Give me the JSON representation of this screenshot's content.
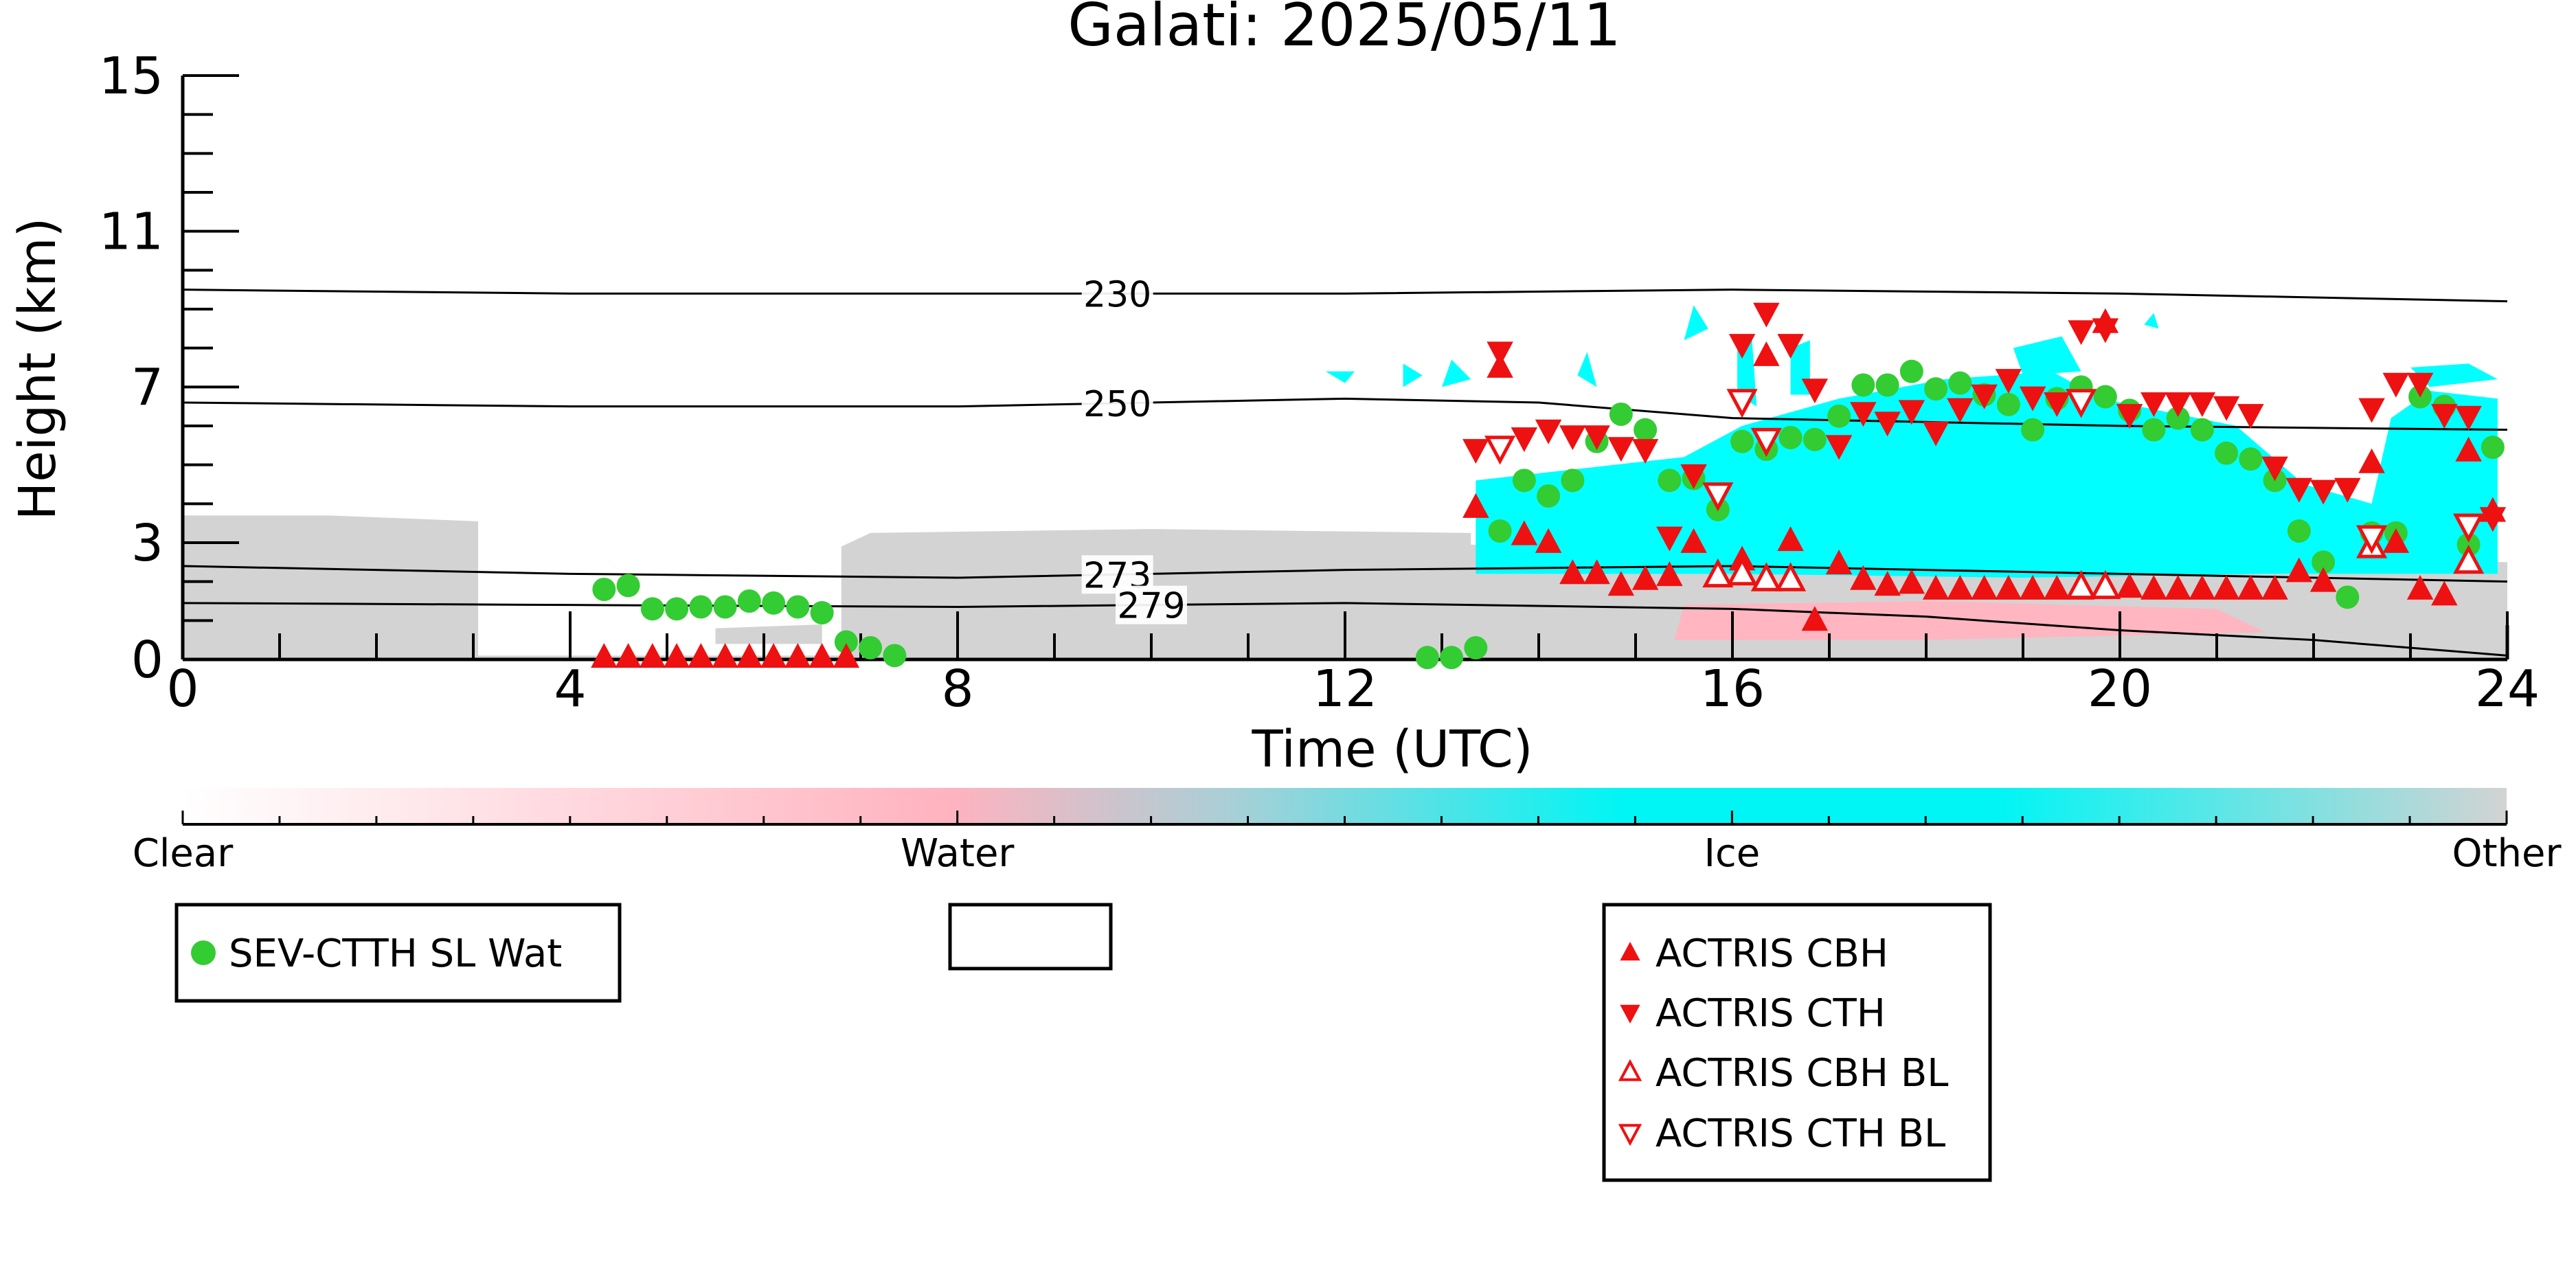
{
  "chart_data": {
    "type": "scatter",
    "title": "Galati: 2025/05/11",
    "xlabel": "Time (UTC)",
    "ylabel": "Height (km)",
    "xlim": [
      0,
      24
    ],
    "ylim": [
      0,
      15
    ],
    "x_ticks": [
      0,
      4,
      8,
      12,
      16,
      20,
      24
    ],
    "y_ticks": [
      0,
      3,
      7,
      11,
      15
    ],
    "grid": false,
    "colorbar": {
      "labels": [
        "Clear",
        "Water",
        "Ice",
        "Other"
      ],
      "colors": [
        "#ffffff",
        "#ffb6c1",
        "#00ffff",
        "#d3d3d3"
      ]
    },
    "legend": [
      {
        "label": "SEV-CTTH SL Wat",
        "marker": "circle",
        "color": "#33cc33"
      },
      {
        "label": "ACTRIS CBH",
        "marker": "triangle-up",
        "color": "#ee1111",
        "filled": true
      },
      {
        "label": "ACTRIS CTH",
        "marker": "triangle-down",
        "color": "#ee1111",
        "filled": true
      },
      {
        "label": "ACTRIS CBH BL",
        "marker": "triangle-up",
        "color": "#ee1111",
        "filled": false
      },
      {
        "label": "ACTRIS CTH BL",
        "marker": "triangle-down",
        "color": "#ee1111",
        "filled": false
      }
    ],
    "contours": [
      {
        "label": "230",
        "x": [
          0,
          4,
          8,
          12,
          16,
          20,
          24
        ],
        "y": [
          9.5,
          9.4,
          9.4,
          9.4,
          9.5,
          9.4,
          9.2
        ]
      },
      {
        "label": "250",
        "x": [
          0,
          4,
          8,
          12,
          14,
          16,
          20,
          24
        ],
        "y": [
          6.6,
          6.5,
          6.5,
          6.7,
          6.6,
          6.2,
          6.0,
          5.9
        ]
      },
      {
        "label": "273",
        "x": [
          0,
          4,
          8,
          12,
          16,
          20,
          24
        ],
        "y": [
          2.4,
          2.2,
          2.1,
          2.3,
          2.4,
          2.2,
          2.0
        ]
      },
      {
        "label": "279",
        "x": [
          0,
          4,
          8,
          12,
          16,
          18,
          20,
          22,
          24
        ],
        "y": [
          1.45,
          1.4,
          1.35,
          1.45,
          1.3,
          1.1,
          0.75,
          0.5,
          0.1
        ]
      }
    ],
    "series": [
      {
        "name": "SEV-CTTH SL Wat",
        "x": [
          4.35,
          4.6,
          4.85,
          5.1,
          5.35,
          5.6,
          5.85,
          6.1,
          6.35,
          6.6,
          6.85,
          7.1,
          7.35,
          12.85,
          13.1,
          13.35,
          13.6,
          13.85,
          14.1,
          14.35,
          14.6,
          14.85,
          15.1,
          15.35,
          15.6,
          15.85,
          16.1,
          16.35,
          16.6,
          16.85,
          17.1,
          17.35,
          17.6,
          17.85,
          18.1,
          18.35,
          18.6,
          18.85,
          19.1,
          19.35,
          19.6,
          19.85,
          20.1,
          20.35,
          20.6,
          20.85,
          21.1,
          21.35,
          21.6,
          21.85,
          22.1,
          22.35,
          22.6,
          22.85,
          23.1,
          23.35,
          23.6,
          23.85
        ],
        "y": [
          1.8,
          1.9,
          1.3,
          1.3,
          1.35,
          1.35,
          1.5,
          1.45,
          1.35,
          1.2,
          0.45,
          0.3,
          0.1,
          0.05,
          0.05,
          0.3,
          3.3,
          4.6,
          4.2,
          4.6,
          5.6,
          6.3,
          5.9,
          4.6,
          4.65,
          3.85,
          5.6,
          5.4,
          5.7,
          5.65,
          6.25,
          7.05,
          7.05,
          7.4,
          6.95,
          7.1,
          6.8,
          6.55,
          5.9,
          6.7,
          7.0,
          6.75,
          6.4,
          5.9,
          6.2,
          5.9,
          5.3,
          5.15,
          4.6,
          3.3,
          2.5,
          1.6,
          3.25,
          3.25,
          6.75,
          6.5,
          2.95,
          5.45
        ]
      },
      {
        "name": "ACTRIS CBH",
        "x": [
          4.35,
          4.6,
          4.85,
          5.1,
          5.35,
          5.6,
          5.85,
          6.1,
          6.35,
          6.6,
          6.85,
          13.35,
          13.6,
          13.85,
          14.1,
          14.35,
          14.6,
          14.85,
          15.1,
          15.35,
          15.6,
          16.1,
          16.35,
          16.6,
          16.85,
          17.1,
          17.35,
          17.6,
          17.85,
          18.1,
          18.35,
          18.6,
          18.85,
          19.1,
          19.35,
          19.6,
          19.85,
          20.1,
          20.35,
          20.6,
          20.85,
          21.1,
          21.35,
          21.6,
          21.85,
          22.1,
          22.6,
          22.85,
          23.1,
          23.35,
          23.6,
          23.85
        ],
        "y": [
          0.05,
          0.05,
          0.05,
          0.05,
          0.05,
          0.05,
          0.05,
          0.05,
          0.05,
          0.05,
          0.05,
          3.9,
          7.5,
          3.2,
          3.0,
          2.2,
          2.2,
          1.9,
          2.05,
          2.15,
          3.0,
          2.55,
          7.8,
          3.05,
          1.0,
          2.45,
          2.05,
          1.9,
          1.95,
          1.8,
          1.8,
          1.8,
          1.8,
          1.8,
          1.8,
          1.8,
          8.65,
          1.85,
          1.8,
          1.8,
          1.8,
          1.8,
          1.8,
          1.8,
          2.25,
          2.0,
          5.05,
          3.0,
          1.8,
          1.65,
          5.35,
          3.8
        ]
      },
      {
        "name": "ACTRIS CTH",
        "x": [
          13.35,
          13.6,
          13.85,
          14.1,
          14.35,
          14.6,
          14.85,
          15.1,
          15.35,
          15.6,
          16.1,
          16.35,
          16.6,
          16.85,
          17.1,
          17.35,
          17.6,
          17.85,
          18.1,
          18.35,
          18.6,
          18.85,
          19.1,
          19.35,
          19.6,
          19.85,
          20.1,
          20.35,
          20.6,
          20.85,
          21.1,
          21.35,
          21.6,
          21.85,
          22.1,
          22.35,
          22.6,
          22.85,
          23.1,
          23.35,
          23.6,
          23.85
        ],
        "y": [
          5.4,
          7.9,
          5.7,
          5.9,
          5.75,
          5.75,
          5.45,
          5.4,
          3.15,
          4.75,
          8.1,
          8.9,
          8.1,
          6.95,
          5.5,
          6.35,
          6.1,
          6.4,
          5.85,
          6.45,
          6.8,
          7.2,
          6.75,
          6.6,
          8.45,
          8.5,
          6.3,
          6.6,
          6.6,
          6.6,
          6.5,
          6.3,
          4.95,
          4.4,
          4.35,
          4.4,
          6.45,
          7.1,
          7.1,
          6.3,
          6.25,
          3.65
        ]
      },
      {
        "name": "ACTRIS CBH BL",
        "x": [
          15.85,
          16.1,
          16.35,
          16.6,
          19.6,
          19.85,
          22.6,
          23.6
        ],
        "y": [
          2.15,
          2.2,
          2.05,
          2.05,
          1.85,
          1.85,
          2.9,
          2.5
        ]
      },
      {
        "name": "ACTRIS CTH BL",
        "x": [
          13.6,
          15.85,
          16.1,
          16.35,
          19.6,
          22.6,
          23.6
        ],
        "y": [
          5.45,
          4.25,
          6.65,
          5.65,
          6.65,
          3.15,
          3.45
        ]
      }
    ]
  }
}
